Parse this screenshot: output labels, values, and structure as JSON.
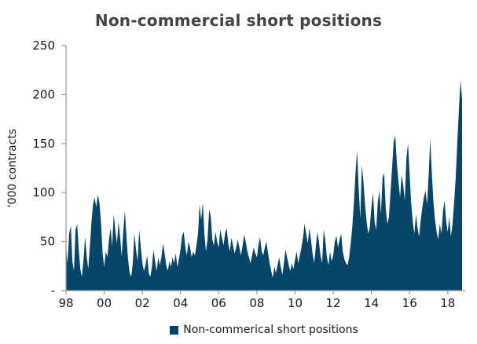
{
  "colors": {
    "area": "#074569",
    "axis": "#9e9e9e",
    "title_text": "#444444",
    "tick_text": "#1a1a1a"
  },
  "chart_data": {
    "type": "area",
    "title": "Non-commercial short positions",
    "ylabel": "'000 contracts",
    "xlabel": "",
    "ylim": [
      0,
      250
    ],
    "grid": false,
    "y_ticks": [
      0,
      50,
      100,
      150,
      200,
      250
    ],
    "y_tick_labels": [
      "-",
      "50",
      "100",
      "150",
      "200",
      "250"
    ],
    "x_tick_years": [
      1998,
      2000,
      2002,
      2004,
      2006,
      2008,
      2010,
      2012,
      2014,
      2016,
      2018
    ],
    "x_tick_labels": [
      "98",
      "00",
      "02",
      "04",
      "06",
      "08",
      "10",
      "12",
      "14",
      "16",
      "18"
    ],
    "legend": {
      "position": "bottom",
      "label": "Non-commerical short positions"
    },
    "series": [
      {
        "name": "Non-commerical short positions",
        "color": "#074569",
        "start_year": 1998,
        "frequency": "monthly",
        "values": [
          45,
          28,
          58,
          66,
          30,
          20,
          62,
          68,
          42,
          22,
          14,
          32,
          55,
          35,
          22,
          45,
          70,
          88,
          95,
          85,
          98,
          90,
          70,
          38,
          24,
          40,
          34,
          52,
          64,
          45,
          78,
          62,
          48,
          70,
          55,
          35,
          60,
          82,
          55,
          32,
          18,
          14,
          28,
          58,
          42,
          30,
          62,
          45,
          28,
          20,
          26,
          36,
          18,
          14,
          24,
          42,
          30,
          20,
          34,
          26,
          34,
          48,
          38,
          26,
          20,
          30,
          24,
          34,
          28,
          38,
          24,
          32,
          42,
          56,
          60,
          44,
          36,
          50,
          44,
          34,
          40,
          36,
          46,
          58,
          88,
          72,
          90,
          58,
          40,
          52,
          83,
          76,
          52,
          46,
          60,
          50,
          44,
          62,
          54,
          46,
          58,
          64,
          48,
          40,
          54,
          46,
          38,
          44,
          52,
          44,
          36,
          46,
          57,
          50,
          40,
          34,
          28,
          36,
          44,
          38,
          34,
          46,
          55,
          40,
          36,
          44,
          50,
          38,
          28,
          20,
          13,
          24,
          18,
          26,
          34,
          24,
          16,
          28,
          42,
          34,
          26,
          20,
          28,
          22,
          32,
          40,
          28,
          36,
          44,
          54,
          68,
          58,
          48,
          64,
          52,
          38,
          28,
          44,
          60,
          50,
          36,
          28,
          62,
          52,
          34,
          26,
          40,
          30,
          36,
          50,
          56,
          44,
          52,
          58,
          40,
          32,
          28,
          26,
          34,
          48,
          65,
          90,
          120,
          143,
          105,
          74,
          128,
          111,
          88,
          70,
          58,
          65,
          85,
          100,
          70,
          62,
          90,
          102,
          78,
          115,
          120,
          85,
          68,
          75,
          100,
          125,
          152,
          158,
          130,
          112,
          95,
          118,
          108,
          92,
          135,
          150,
          120,
          90,
          70,
          58,
          78,
          64,
          55,
          72,
          85,
          95,
          102,
          88,
          118,
          155,
          120,
          90,
          72,
          60,
          52,
          68,
          58,
          80,
          92,
          70,
          60,
          75,
          55,
          68,
          90,
          115,
          150,
          185,
          215,
          195
        ]
      }
    ]
  }
}
